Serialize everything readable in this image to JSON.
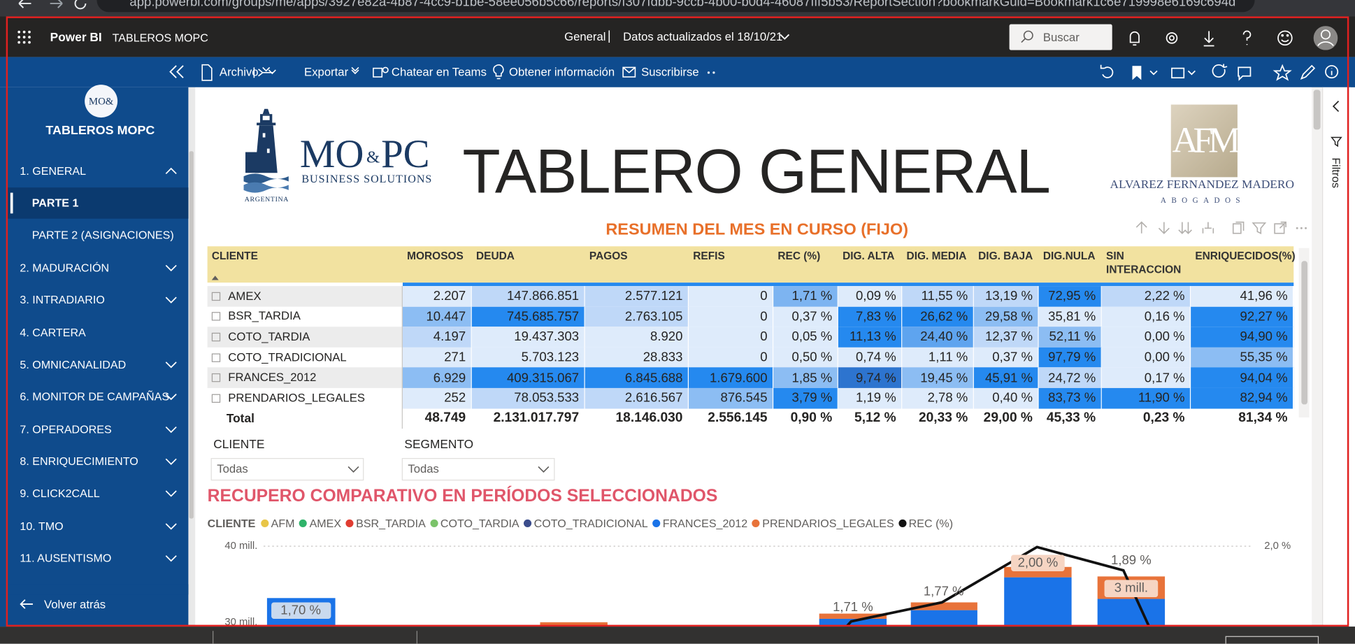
{
  "browser": {
    "url": "app.powerbi.com/groups/me/apps/3927e82a-4b87-4cc9-b1be-58ee056b5c66/reports/f307fdbb-9ccb-4b00-b0d4-46087fff5b53/ReportSection?bookmarkGuid=Bookmark1c6e719998e6169c694d"
  },
  "topbar": {
    "product": "Power BI",
    "workspace": "TABLEROS MOPC",
    "page": "General",
    "separator": "|",
    "updated": "Datos actualizados el 18/10/21",
    "search": "Buscar"
  },
  "toolbar": {
    "items": [
      "Archivo",
      "Exportar",
      "Chatear en Teams",
      "Obtener información",
      "Suscribirse"
    ]
  },
  "sidebar": {
    "logo": "MO&",
    "app": "TABLEROS MOPC",
    "nav": [
      "1. GENERAL",
      "PARTE 1",
      "PARTE 2 (ASIGNACIONES)",
      "2. MADURACIÓN",
      "3. INTRADIARIO",
      "4. CARTERA",
      "5. OMNICANALIDAD",
      "6. MONITOR DE CAMPAÑAS",
      "7. OPERADORES",
      "8. ENRIQUECIMIENTO",
      "9. CLICK2CALL",
      "10. TMO",
      "11. AUSENTISMO"
    ],
    "back": "Volver atrás"
  },
  "report": {
    "title": "TABLERO GENERAL",
    "left_logo": {
      "name": "MO",
      "amp": "&",
      "name2": "PC",
      "tagline": "BUSINESS SOLUTIONS",
      "country": "ARGENTINA"
    },
    "right_logo": {
      "mark": "AFM",
      "name": "ALVAREZ FERNANDEZ MADERO",
      "sub": "ABOGADOS"
    }
  },
  "table": {
    "title": "RESUMEN DEL MES EN CURSO (FIJO)",
    "columns": [
      "CLIENTE",
      "MOROSOS",
      "DEUDA",
      "PAGOS",
      "REFIS",
      "REC (%)",
      "DIG. ALTA",
      "DIG. MEDIA",
      "DIG. BAJA",
      "DIG.NULA",
      "SIN INTERACCION",
      "ENRIQUECIDOS(%)"
    ],
    "rows": [
      {
        "label": "AMEX",
        "cells": [
          "2.207",
          "147.866.851",
          "2.577.121",
          "0",
          "1,71 %",
          "0,09 %",
          "11,55 %",
          "13,19 %",
          "72,95 %",
          "2,22 %",
          "41,96 %"
        ],
        "colors": [
          "#deebfb",
          "#bfd8f8",
          "#bfd8f8",
          "#deebfb",
          "#7db4f1",
          "#deebfb",
          "#bfd8f8",
          "#bfd8f8",
          "#2589ef",
          "#bfd8f8",
          "#deebfb"
        ]
      },
      {
        "label": "BSR_TARDIA",
        "cells": [
          "10.447",
          "745.685.757",
          "2.763.105",
          "0",
          "0,37 %",
          "7,83 %",
          "26,62 %",
          "29,58 %",
          "35,81 %",
          "0,16 %",
          "92,27 %"
        ],
        "colors": [
          "#8cbdf3",
          "#2589ef",
          "#bfd8f8",
          "#deebfb",
          "#deebfb",
          "#2589ef",
          "#2589ef",
          "#8cbdf3",
          "#deebfb",
          "#deebfb",
          "#2589ef"
        ]
      },
      {
        "label": "COTO_TARDIA",
        "cells": [
          "4.197",
          "19.437.303",
          "8.920",
          "0",
          "0,05 %",
          "11,13 %",
          "24,40 %",
          "12,37 %",
          "52,11 %",
          "0,00 %",
          "94,90 %"
        ],
        "colors": [
          "#bfd8f8",
          "#deebfb",
          "#deebfb",
          "#deebfb",
          "#deebfb",
          "#2589ef",
          "#5ea4ef",
          "#bfd8f8",
          "#8cbdf3",
          "#deebfb",
          "#2589ef"
        ]
      },
      {
        "label": "COTO_TRADICIONAL",
        "cells": [
          "271",
          "5.703.123",
          "28.833",
          "0",
          "0,50 %",
          "0,74 %",
          "1,11 %",
          "0,37 %",
          "97,79 %",
          "0,00 %",
          "55,35 %"
        ],
        "colors": [
          "#deebfb",
          "#deebfb",
          "#deebfb",
          "#deebfb",
          "#deebfb",
          "#deebfb",
          "#deebfb",
          "#deebfb",
          "#2589ef",
          "#deebfb",
          "#8cbdf3"
        ]
      },
      {
        "label": "FRANCES_2012",
        "cells": [
          "6.929",
          "409.315.067",
          "6.845.688",
          "1.679.600",
          "1,85 %",
          "9,74 %",
          "19,45 %",
          "45,91 %",
          "24,72 %",
          "0,17 %",
          "94,04 %"
        ],
        "colors": [
          "#8cbdf3",
          "#2589ef",
          "#2589ef",
          "#2589ef",
          "#8cbdf3",
          "#2d74cf",
          "#8cbdf3",
          "#2589ef",
          "#bfd8f8",
          "#deebfb",
          "#2589ef"
        ]
      },
      {
        "label": "PRENDARIOS_LEGALES",
        "cells": [
          "252",
          "78.053.533",
          "2.616.567",
          "876.545",
          "3,79 %",
          "1,19 %",
          "2,78 %",
          "0,40 %",
          "83,73 %",
          "11,90 %",
          "82,94 %"
        ],
        "colors": [
          "#deebfb",
          "#bfd8f8",
          "#bfd8f8",
          "#8cbdf3",
          "#2589ef",
          "#deebfb",
          "#deebfb",
          "#deebfb",
          "#2589ef",
          "#2589ef",
          "#2589ef"
        ]
      }
    ],
    "total": {
      "label": "Total",
      "cells": [
        "48.749",
        "2.131.017.797",
        "18.146.030",
        "2.556.145",
        "0,90 %",
        "5,12 %",
        "20,33 %",
        "29,00 %",
        "45,33 %",
        "0,23 %",
        "81,34 %"
      ]
    }
  },
  "slicers": [
    {
      "label": "CLIENTE",
      "value": "Todas"
    },
    {
      "label": "SEGMENTO",
      "value": "Todas"
    }
  ],
  "chart": {
    "title": "RECUPERO COMPARATIVO EN PERÍODOS SELECCIONADOS",
    "legend_title": "CLIENTE",
    "legend": [
      {
        "name": "AFM",
        "color": "#e8c547"
      },
      {
        "name": "AMEX",
        "color": "#2fb36a"
      },
      {
        "name": "BSR_TARDIA",
        "color": "#e03c31"
      },
      {
        "name": "COTO_TARDIA",
        "color": "#7bc36a"
      },
      {
        "name": "COTO_TRADICIONAL",
        "color": "#3b4d8c"
      },
      {
        "name": "FRANCES_2012",
        "color": "#1a73e8"
      },
      {
        "name": "PRENDARIOS_LEGALES",
        "color": "#e8733a"
      },
      {
        "name": "REC (%)",
        "color": "#111111"
      }
    ],
    "y_labels": [
      "40 mill.",
      "30 mill."
    ],
    "y2_labels": [
      "2,0 %"
    ],
    "data_labels": [
      "1,70 %",
      "1,71 %",
      "1,77 %",
      "2,00 %",
      "1,89 %"
    ],
    "bar_label": "3 mill."
  },
  "filters": "Filtros"
}
